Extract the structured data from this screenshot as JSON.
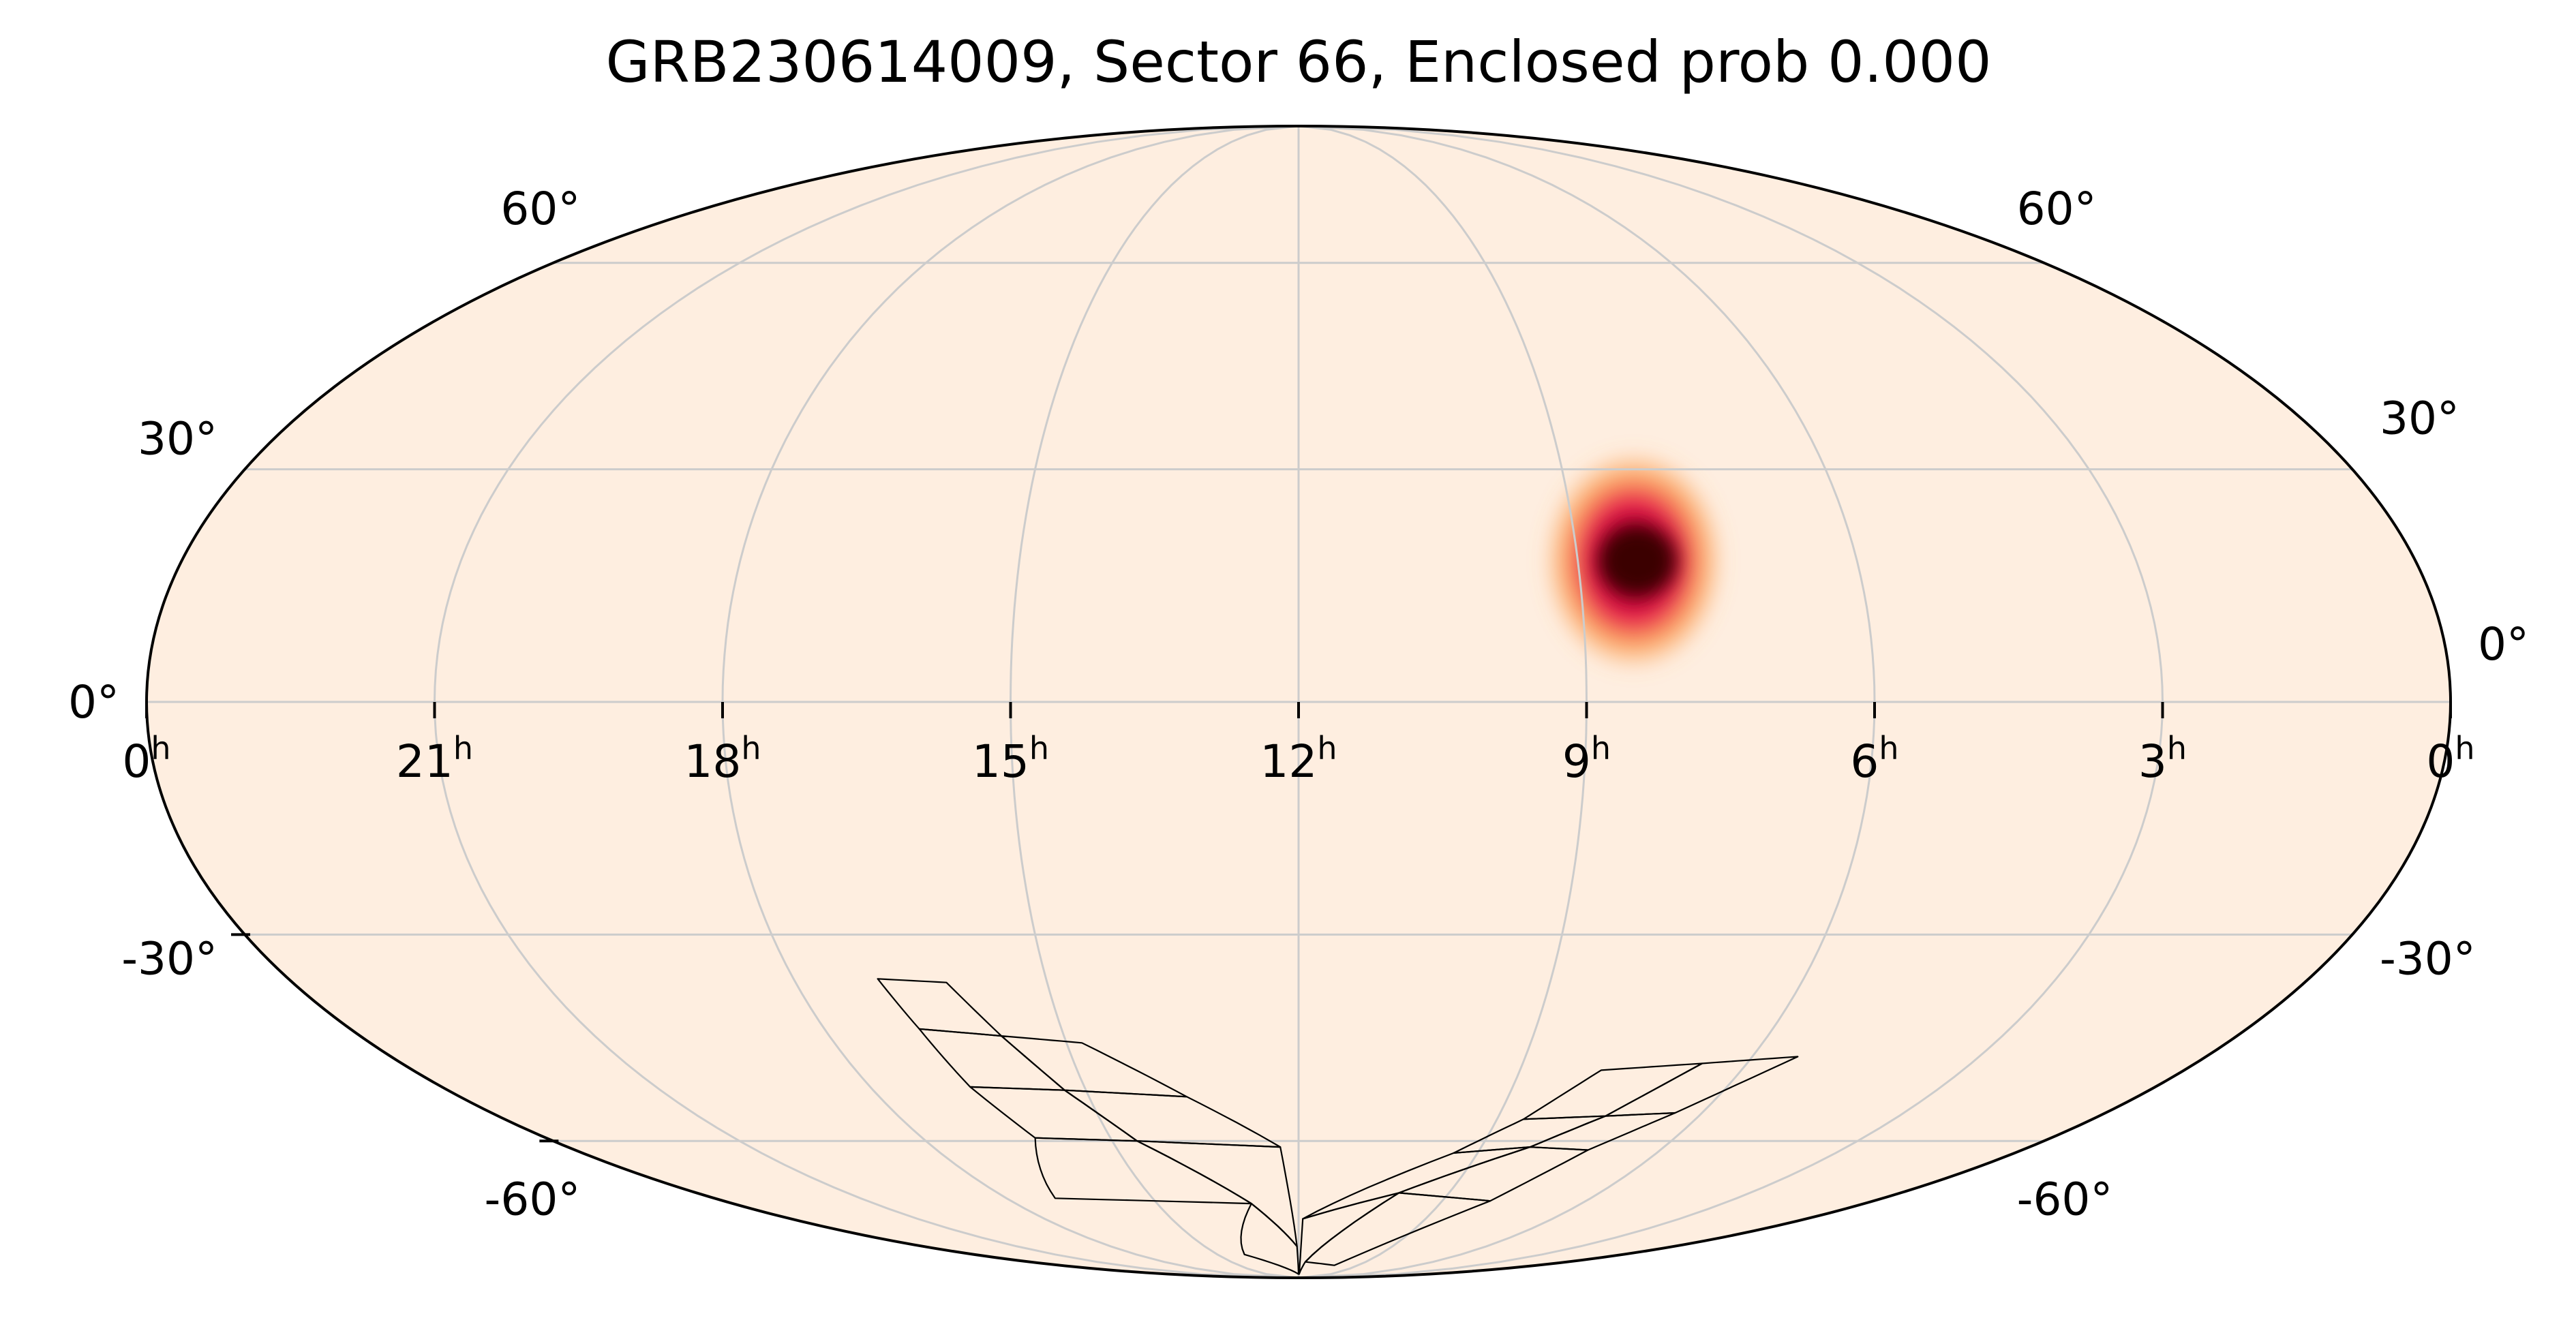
{
  "title": "GRB230614009, Sector 66, Enclosed prob 0.000",
  "projection": "mollweide",
  "colors": {
    "background": "#ffffff",
    "sky_fill": "#feeee0",
    "grid": "#cccccc",
    "outline": "#000000",
    "heat_core": "#3a0000",
    "heat_mid": "#b3002d",
    "heat_edge": "#e8174d",
    "heat_halo": "#fb9a4b"
  },
  "graticule": {
    "ra_hours": [
      0,
      3,
      6,
      9,
      12,
      15,
      18,
      21,
      24
    ],
    "dec_degrees": [
      -60,
      -30,
      0,
      30,
      60
    ]
  },
  "ra_labels": [
    {
      "ra_h": 24,
      "label": "0"
    },
    {
      "ra_h": 21,
      "label": "21"
    },
    {
      "ra_h": 18,
      "label": "18"
    },
    {
      "ra_h": 15,
      "label": "15"
    },
    {
      "ra_h": 12,
      "label": "12"
    },
    {
      "ra_h": 9,
      "label": "9"
    },
    {
      "ra_h": 6,
      "label": "6"
    },
    {
      "ra_h": 3,
      "label": "3"
    },
    {
      "ra_h": 0,
      "label": "0"
    }
  ],
  "ra_label_suffix": "h",
  "dec_labels": [
    {
      "dec": 60,
      "label": "60°"
    },
    {
      "dec": 30,
      "label": "30°"
    },
    {
      "dec": 0,
      "label": "0°"
    },
    {
      "dec": -30,
      "label": "-30°"
    },
    {
      "dec": -60,
      "label": "-60°"
    }
  ],
  "localization": {
    "peak_ra_hours": 8.4,
    "peak_dec_deg": 18,
    "sigma_deg": 6
  },
  "sector_footprint": {
    "sector": 66,
    "ccd_tiles_east": [
      [
        [
          17.0,
          -36.0
        ],
        [
          16.2,
          -36.5
        ],
        [
          15.8,
          -44.0
        ],
        [
          16.8,
          -43.0
        ]
      ],
      [
        [
          16.8,
          -43.0
        ],
        [
          15.8,
          -44.0
        ],
        [
          15.3,
          -52.0
        ],
        [
          16.6,
          -51.5
        ]
      ],
      [
        [
          16.6,
          -51.5
        ],
        [
          15.3,
          -52.0
        ],
        [
          14.6,
          -60.0
        ],
        [
          16.2,
          -59.5
        ]
      ],
      [
        [
          16.2,
          -59.5
        ],
        [
          14.6,
          -60.0
        ],
        [
          13.0,
          -71.0
        ],
        [
          17.0,
          -70.0
        ]
      ],
      [
        [
          15.8,
          -44.0
        ],
        [
          14.8,
          -45.0
        ],
        [
          13.6,
          -53.0
        ],
        [
          15.3,
          -52.0
        ]
      ],
      [
        [
          15.3,
          -52.0
        ],
        [
          13.6,
          -53.0
        ],
        [
          12.3,
          -61.0
        ],
        [
          14.6,
          -60.0
        ]
      ],
      [
        [
          14.6,
          -60.0
        ],
        [
          12.3,
          -61.0
        ],
        [
          12.05,
          -80.0
        ],
        [
          13.0,
          -71.0
        ]
      ],
      [
        [
          13.0,
          -71.0
        ],
        [
          12.05,
          -80.0
        ],
        [
          12.0,
          -88.0
        ],
        [
          14.0,
          -82.0
        ]
      ]
    ],
    "ccd_tiles_west": [
      [
        [
          5.4,
          -47.0
        ],
        [
          6.6,
          -48.0
        ],
        [
          7.4,
          -56.0
        ],
        [
          6.4,
          -55.5
        ]
      ],
      [
        [
          6.4,
          -55.5
        ],
        [
          7.4,
          -56.0
        ],
        [
          8.2,
          -61.0
        ],
        [
          7.2,
          -61.5
        ]
      ],
      [
        [
          7.2,
          -61.5
        ],
        [
          8.2,
          -61.0
        ],
        [
          10.0,
          -69.0
        ],
        [
          8.0,
          -70.5
        ]
      ],
      [
        [
          8.0,
          -70.5
        ],
        [
          10.0,
          -69.0
        ],
        [
          11.7,
          -84.0
        ],
        [
          10.2,
          -85.0
        ]
      ],
      [
        [
          6.6,
          -48.0
        ],
        [
          7.9,
          -49.0
        ],
        [
          8.6,
          -56.5
        ],
        [
          7.4,
          -56.0
        ]
      ],
      [
        [
          7.4,
          -56.0
        ],
        [
          8.6,
          -56.5
        ],
        [
          9.4,
          -62.0
        ],
        [
          8.2,
          -61.0
        ]
      ],
      [
        [
          8.2,
          -61.0
        ],
        [
          9.4,
          -62.0
        ],
        [
          11.9,
          -74.0
        ],
        [
          10.0,
          -69.0
        ]
      ],
      [
        [
          10.0,
          -69.0
        ],
        [
          11.9,
          -74.0
        ],
        [
          11.95,
          -88.0
        ],
        [
          11.7,
          -84.0
        ]
      ]
    ]
  }
}
